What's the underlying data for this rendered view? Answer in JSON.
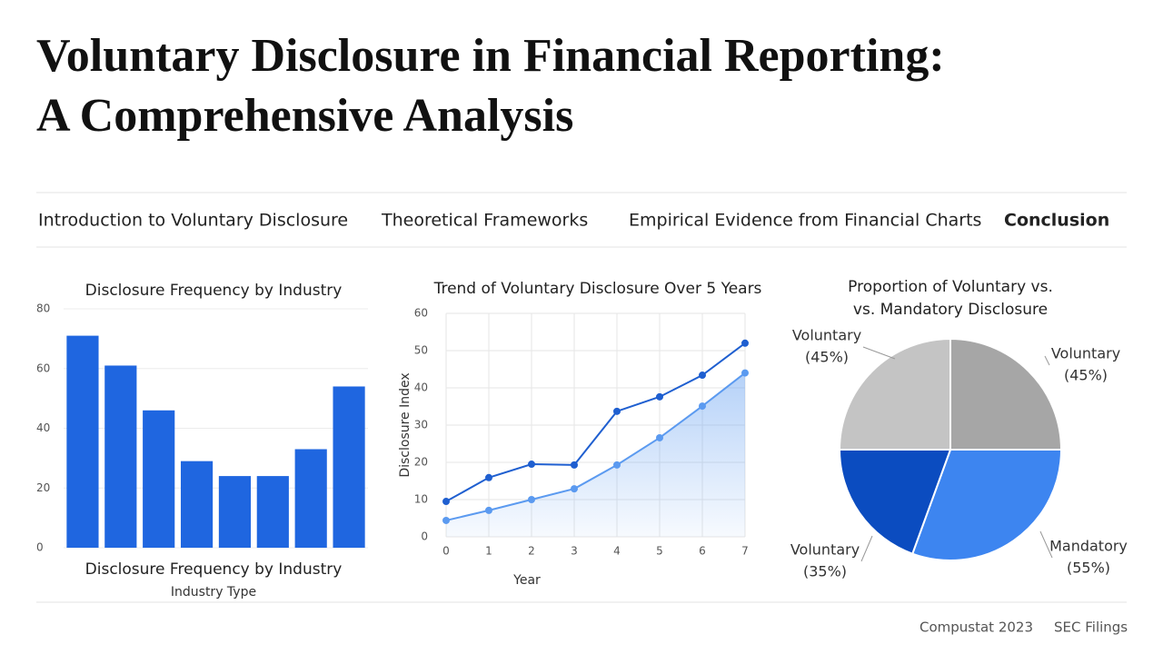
{
  "header": {
    "title_lines": [
      "Voluntary Disclosure in Financial Reporting:",
      "A Comprehensive Analysis"
    ]
  },
  "nav": [
    "Introduction to Voluntary Disclosure",
    "Theoretical Frameworks",
    "Empirical Evidence from Financial Charts",
    "Conclusion"
  ],
  "chart_data": [
    {
      "type": "bar",
      "title": "Disclosure Frequency by Industry",
      "xlabel": "Disclosure Frequency by Industry",
      "xlabel2": "Industry Type",
      "categories": [
        null,
        null,
        null,
        null,
        null,
        null,
        null,
        null
      ],
      "values": [
        71,
        61,
        46,
        29,
        24,
        24,
        33,
        54
      ],
      "color": "#1f66e0",
      "ylim": [
        0,
        80
      ],
      "yticks": [
        0,
        20,
        40,
        60,
        80
      ],
      "grid": true
    },
    {
      "type": "line",
      "title": "Trend of Voluntary Disclosure Over 5 Years",
      "xlabel": "Year",
      "ylabel": "Disclosure Index",
      "x": [
        0,
        1,
        2,
        3,
        4,
        5,
        6,
        7
      ],
      "series": [
        {
          "color": "#1f5fd0",
          "values": [
            9.5,
            15.9,
            19.5,
            19.3,
            33.7,
            37.6,
            43.4,
            52
          ]
        },
        {
          "color": "#5b9af0",
          "values": [
            4.4,
            7.1,
            10,
            12.9,
            19.3,
            26.6,
            35.1,
            44
          ],
          "area": true
        }
      ],
      "xlim": [
        0,
        7
      ],
      "xticks": [
        0,
        1,
        2,
        3,
        4,
        5,
        6,
        7
      ],
      "ylim": [
        0,
        60
      ],
      "yticks": [
        0,
        10,
        20,
        30,
        40,
        50,
        60
      ],
      "grid": true
    },
    {
      "type": "pie",
      "title_lines": [
        "Proportion of Voluntary vs.",
        "vs. Mandatory Disclosure"
      ],
      "categories": [
        "Voluntary",
        "Mandatory",
        "Voluntary",
        "Voluntary"
      ],
      "values": [
        45,
        55,
        35,
        45
      ],
      "value_labels": [
        "(45%)",
        "(55%)",
        "(35%)",
        "(45%)"
      ],
      "colors": [
        "#a6a6a6",
        "#3d85f0",
        "#0b4cc0",
        "#c4c4c4"
      ]
    }
  ],
  "footer": [
    "Compustat 2023",
    "SEC Filings"
  ]
}
